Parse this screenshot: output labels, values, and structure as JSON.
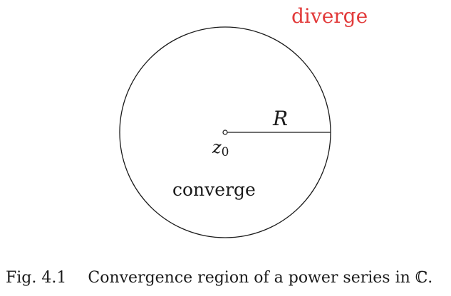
{
  "diagram": {
    "outside_label": "diverge",
    "inside_label": "converge",
    "radius_label": "R",
    "center_label_base": "z",
    "center_label_sub": "0",
    "colors": {
      "outside_label": "#e23b3b",
      "stroke": "#1a1a1a",
      "background": "#ffffff"
    }
  },
  "caption": {
    "number": "Fig. 4.1",
    "text": "Convergence region of a power series in ℂ."
  }
}
